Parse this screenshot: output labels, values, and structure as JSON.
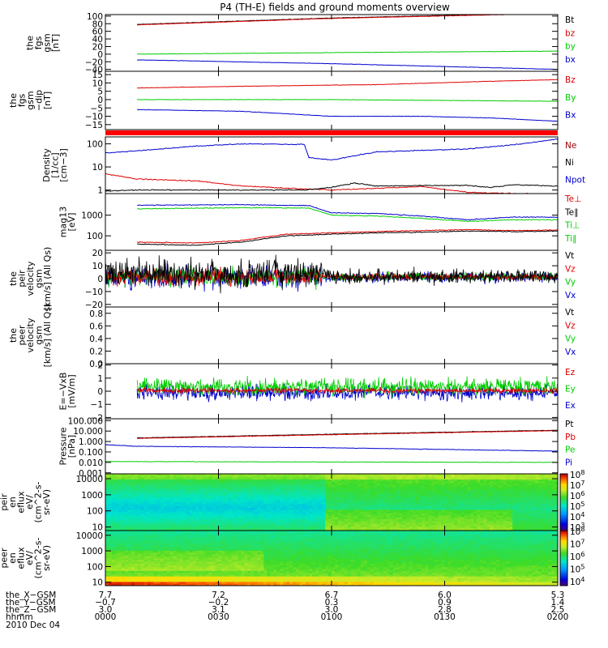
{
  "title": "P4 (TH-E) fields and ground moments overview",
  "chart_data": [
    {
      "id": "p1",
      "type": "line",
      "ylabel": [
        "the",
        "fgs",
        "gsm",
        "[nT]"
      ],
      "yticks": [
        "100",
        "80",
        "60",
        "40",
        "20",
        "0",
        "−20",
        "−40"
      ],
      "tick_values": [
        100,
        80,
        60,
        40,
        20,
        0,
        -20,
        -40
      ],
      "ylim": [
        -45,
        104
      ],
      "legend": [
        "Bt",
        "bz",
        "by",
        "bx"
      ],
      "legend_colors": [
        "#000000",
        "#dd0000",
        "#00cc00",
        "#0000cc"
      ],
      "series": [
        {
          "name": "Bt",
          "color": "#000000",
          "x": [
            0.07,
            0.5,
            1.0
          ],
          "y": [
            78,
            95,
            108
          ]
        },
        {
          "name": "bz",
          "color": "#dd0000",
          "x": [
            0.07,
            0.5,
            1.0
          ],
          "y": [
            77,
            94,
            107
          ]
        },
        {
          "name": "by",
          "color": "#00cc00",
          "x": [
            0.07,
            0.5,
            1.0
          ],
          "y": [
            0,
            4,
            8
          ]
        },
        {
          "name": "bx",
          "color": "#0000cc",
          "x": [
            0.07,
            0.5,
            1.0
          ],
          "y": [
            -15,
            -25,
            -40
          ]
        }
      ]
    },
    {
      "id": "p2",
      "type": "line",
      "ylabel": [
        "the",
        "fgs",
        "gsm",
        "−dip",
        "[nT]"
      ],
      "yticks": [
        "15",
        "10",
        "5",
        "0",
        "−5",
        "−10",
        "−15"
      ],
      "tick_values": [
        15,
        10,
        5,
        0,
        -5,
        -10,
        -15
      ],
      "ylim": [
        -18,
        17
      ],
      "legend": [
        "Bz",
        "By",
        "Bx"
      ],
      "legend_colors": [
        "#dd0000",
        "#00cc00",
        "#0000cc"
      ],
      "series": [
        {
          "name": "Bz",
          "color": "#dd0000",
          "x": [
            0.07,
            0.3,
            0.6,
            0.85,
            1.0
          ],
          "y": [
            7,
            8,
            9,
            11,
            12
          ]
        },
        {
          "name": "By",
          "color": "#00cc00",
          "x": [
            0.07,
            0.5,
            1.0
          ],
          "y": [
            0,
            0,
            -1
          ]
        },
        {
          "name": "Bx",
          "color": "#0000cc",
          "x": [
            0.07,
            0.3,
            0.5,
            0.7,
            0.85,
            1.0
          ],
          "y": [
            -6,
            -7,
            -10,
            -10,
            -11,
            -13
          ]
        }
      ]
    },
    {
      "id": "p3",
      "type": "line",
      "scale": "log",
      "ylabel": [
        "Density",
        "[1/cc]",
        "[cm−3]"
      ],
      "yticks": [
        "100",
        "10",
        "1"
      ],
      "tick_values": [
        100,
        10,
        1
      ],
      "ylim": [
        0.7,
        200
      ],
      "legend": [
        "Ne",
        "Ni",
        "Npot"
      ],
      "legend_colors": [
        "#990000",
        "#000000",
        "#0000cc"
      ],
      "series": [
        {
          "name": "Ni",
          "color": "#0000cc",
          "x": [
            0,
            0.1,
            0.2,
            0.3,
            0.44,
            0.45,
            0.5,
            0.6,
            0.8,
            0.9,
            1.0
          ],
          "y": [
            40,
            55,
            80,
            100,
            95,
            25,
            20,
            45,
            60,
            90,
            160
          ]
        },
        {
          "name": "Npot",
          "color": "#dd0000",
          "x": [
            0,
            0.07,
            0.2,
            0.3,
            0.4,
            0.5,
            0.7,
            0.8,
            0.9,
            1.0
          ],
          "y": [
            5,
            3,
            2.5,
            1.5,
            1.2,
            1,
            1.4,
            0.8,
            0.7,
            0.65
          ]
        },
        {
          "name": "Ne",
          "color": "#000000",
          "x": [
            0,
            0.07,
            0.3,
            0.44,
            0.5,
            0.55,
            0.6,
            0.8,
            0.85,
            0.9,
            1.0
          ],
          "y": [
            0.9,
            1.0,
            1.0,
            1.0,
            1.3,
            2,
            1.5,
            1.6,
            1.3,
            1.7,
            1.5
          ]
        }
      ]
    },
    {
      "id": "p4",
      "type": "line",
      "scale": "log",
      "ylabel": [
        "mag13",
        "[eV]"
      ],
      "yticks": [
        "1000",
        "100"
      ],
      "tick_values": [
        1000,
        100
      ],
      "ylim": [
        20,
        11000
      ],
      "legend": [
        "Te⊥",
        "Te∥",
        "Ti⊥",
        "Ti∥"
      ],
      "legend_colors": [
        "#dd0000",
        "#000000",
        "#00cc00",
        "#00cc00"
      ],
      "series": [
        {
          "name": "Ti⊥",
          "color": "#0000cc",
          "x": [
            0.07,
            0.3,
            0.45,
            0.5,
            0.6,
            0.7,
            0.8,
            0.9,
            1.0
          ],
          "y": [
            3000,
            3200,
            2900,
            1300,
            1200,
            900,
            600,
            800,
            800
          ]
        },
        {
          "name": "Ti∥",
          "color": "#00cc00",
          "x": [
            0.07,
            0.3,
            0.45,
            0.5,
            0.6,
            0.7,
            0.8,
            0.9,
            1.0
          ],
          "y": [
            2000,
            2300,
            2200,
            1000,
            900,
            700,
            500,
            600,
            600
          ]
        },
        {
          "name": "Te⊥",
          "color": "#dd0000",
          "x": [
            0.07,
            0.2,
            0.3,
            0.4,
            0.5,
            0.6,
            0.7,
            0.8,
            0.9,
            1.0
          ],
          "y": [
            50,
            45,
            60,
            120,
            140,
            160,
            180,
            200,
            180,
            190
          ]
        },
        {
          "name": "Te∥",
          "color": "#000000",
          "x": [
            0.07,
            0.2,
            0.3,
            0.4,
            0.5,
            0.6,
            0.7,
            0.8,
            0.9,
            1.0
          ],
          "y": [
            40,
            35,
            50,
            100,
            120,
            140,
            150,
            170,
            160,
            170
          ]
        }
      ]
    },
    {
      "id": "p5",
      "type": "line",
      "ylabel": [
        "the",
        "peir",
        "velocity",
        "gsm",
        "[km/s] (All Qs)"
      ],
      "yticks": [
        "20",
        "10",
        "0",
        "−10",
        "−20"
      ],
      "tick_values": [
        20,
        10,
        0,
        -10,
        -20
      ],
      "ylim": [
        -22,
        22
      ],
      "legend": [
        "Vt",
        "Vz",
        "Vy",
        "Vx"
      ],
      "legend_colors": [
        "#000000",
        "#dd0000",
        "#00cc00",
        "#0000cc"
      ]
    },
    {
      "id": "p6",
      "type": "line",
      "ylabel": [
        "the",
        "peer",
        "velocity",
        "gsm",
        "[km/s] (All Qs)"
      ],
      "yticks": [
        "0.8",
        "0.6",
        "0.4",
        "0.2",
        "0.0"
      ],
      "tick_values": [
        0.8,
        0.6,
        0.4,
        0.2,
        0.0
      ],
      "ylim": [
        0,
        0.9
      ],
      "legend": [
        "Vt",
        "Vz",
        "Vy",
        "Vx"
      ],
      "legend_colors": [
        "#000000",
        "#dd0000",
        "#00cc00",
        "#0000cc"
      ]
    },
    {
      "id": "p7",
      "type": "line",
      "ylabel": [
        "E=−VxB",
        "[mV/m]"
      ],
      "yticks": [
        "2",
        "1",
        "0",
        "−1",
        "−2"
      ],
      "tick_values": [
        2,
        1,
        0,
        -1,
        -2
      ],
      "ylim": [
        -2.1,
        2.1
      ],
      "legend": [
        "Ez",
        "Ey",
        "Ex"
      ],
      "legend_colors": [
        "#dd0000",
        "#00cc00",
        "#0000cc"
      ]
    },
    {
      "id": "p8",
      "type": "line",
      "scale": "log",
      "ylabel": [
        "Pressure",
        "[nPa]"
      ],
      "yticks": [
        "100.000",
        "10.000",
        "1.000",
        "0.100",
        "0.010",
        "0.001"
      ],
      "tick_values": [
        100,
        10,
        1,
        0.1,
        0.01,
        0.001
      ],
      "ylim": [
        0.0008,
        150
      ],
      "legend": [
        "Pt",
        "Pb",
        "Pe",
        "Pi"
      ],
      "legend_colors": [
        "#000000",
        "#dd0000",
        "#00cc00",
        "#0000cc"
      ],
      "series": [
        {
          "name": "Pt",
          "color": "#000000",
          "x": [
            0.07,
            0.5,
            1.0
          ],
          "y": [
            2.2,
            5,
            12
          ]
        },
        {
          "name": "Pb",
          "color": "#dd0000",
          "x": [
            0.07,
            0.5,
            1.0
          ],
          "y": [
            2.0,
            4.5,
            11
          ]
        },
        {
          "name": "Pi",
          "color": "#0000cc",
          "x": [
            0,
            0.07,
            0.5,
            1.0
          ],
          "y": [
            0.5,
            0.35,
            0.25,
            0.12
          ]
        },
        {
          "name": "Pe",
          "color": "#00cc00",
          "x": [
            0,
            0.5,
            1.0
          ],
          "y": [
            0.012,
            0.011,
            0.01
          ]
        }
      ]
    },
    {
      "id": "p9",
      "type": "heatmap",
      "scale": "log",
      "ylabel": [
        "the",
        "peir",
        "en",
        "eflux",
        "eV/",
        "(cm^2-s-",
        "sr-eV)"
      ],
      "yticks": [
        "10000",
        "1000",
        "100",
        "10"
      ],
      "tick_values": [
        10000,
        1000,
        100,
        10
      ],
      "ylim": [
        6,
        20000
      ],
      "colorbar_labels": [
        "10^8",
        "10^7",
        "10^6",
        "10^5",
        "10^4",
        "10^3"
      ],
      "colorbar_values": [
        8,
        7,
        6,
        5,
        4,
        3
      ]
    },
    {
      "id": "p10",
      "type": "heatmap",
      "scale": "log",
      "ylabel": [
        "the",
        "peer",
        "en",
        "eflux",
        "eV/",
        "(cm^2-s-",
        "sr-eV)"
      ],
      "yticks": [
        "10000",
        "1000",
        "100",
        "10"
      ],
      "tick_values": [
        10000,
        1000,
        100,
        10
      ],
      "ylim": [
        6,
        20000
      ],
      "colorbar_labels": [
        "10^8",
        "10^7",
        "10^6",
        "10^5",
        "10^4"
      ],
      "colorbar_values": [
        8,
        7,
        6,
        5,
        4
      ]
    }
  ],
  "ephemeris": {
    "row_labels": [
      "the_X−GSM",
      "the_Y−GSM",
      "the_Z−GSM",
      "hhmm",
      "2010 Dec 04"
    ],
    "columns": [
      {
        "x": "7.7",
        "y": "−0.7",
        "z": "3.0",
        "t": "0000"
      },
      {
        "x": "7.2",
        "y": "−0.2",
        "z": "3.1",
        "t": "0030"
      },
      {
        "x": "6.7",
        "y": "0.3",
        "z": "3.0",
        "t": "0100"
      },
      {
        "x": "6.0",
        "y": "0.9",
        "z": "2.8",
        "t": "0130"
      },
      {
        "x": "5.3",
        "y": "1.4",
        "z": "2.5",
        "t": "0200"
      }
    ]
  }
}
